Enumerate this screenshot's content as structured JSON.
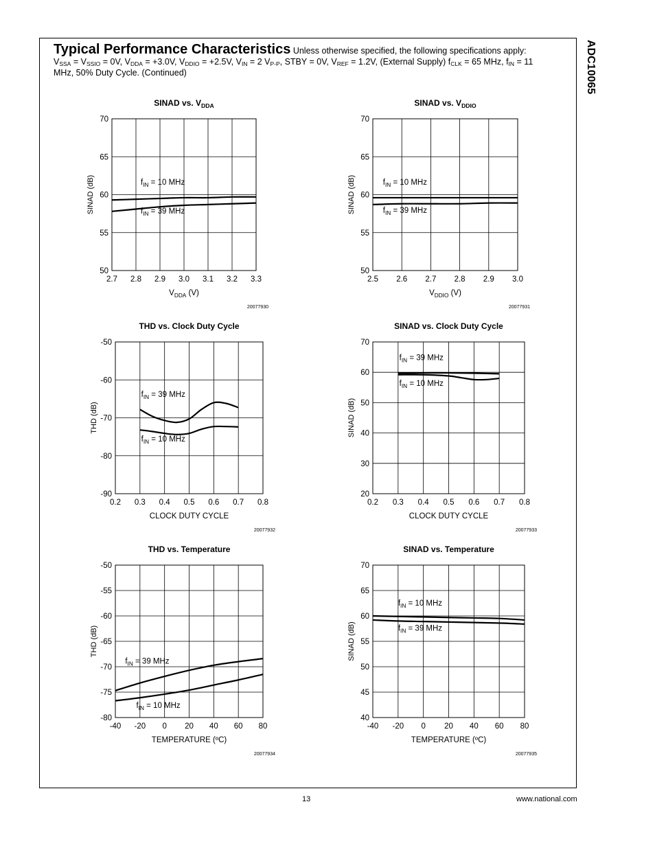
{
  "side_title": "ADC10065",
  "header": {
    "title": "Typical Performance Characteristics",
    "intro": "Unless otherwise specified, the following specifications apply:",
    "conditions": [
      {
        "t": "V"
      },
      {
        "t": "SSA",
        "sub": true
      },
      {
        "t": " = V"
      },
      {
        "t": "SSIO",
        "sub": true
      },
      {
        "t": " = 0V, V"
      },
      {
        "t": "DDA",
        "sub": true
      },
      {
        "t": " = +3.0V, V"
      },
      {
        "t": "DDIO",
        "sub": true
      },
      {
        "t": " = +2.5V, V"
      },
      {
        "t": "IN",
        "sub": true
      },
      {
        "t": " = 2 V"
      },
      {
        "t": "P-P",
        "sub": true
      },
      {
        "t": ", STBY = 0V, V"
      },
      {
        "t": "REF",
        "sub": true
      },
      {
        "t": " = 1.2V, (External Supply) f"
      },
      {
        "t": "CLK",
        "sub": true
      },
      {
        "t": " = 65 MHz, f"
      },
      {
        "t": "IN",
        "sub": true
      },
      {
        "t": " = 11 MHz, 50% Duty Cycle.  (Continued)"
      }
    ]
  },
  "footer": {
    "page_number": "13",
    "website": "www.national.com"
  },
  "chart_data": [
    {
      "type": "line",
      "title": "SINAD vs. V",
      "title_sub": "DDA",
      "xlabel": "V",
      "xlabel_sub": "DDA",
      "xlabel_suffix": " (V)",
      "ylabel": "SINAD (dB)",
      "xlim": [
        2.7,
        3.3
      ],
      "ylim": [
        50,
        70
      ],
      "xticks": [
        2.7,
        2.8,
        2.9,
        3.0,
        3.1,
        3.2,
        3.3
      ],
      "xtick_labels": [
        "2.7",
        "2.8",
        "2.9",
        "3.0",
        "3.1",
        "3.2",
        "3.3"
      ],
      "yticks": [
        50,
        55,
        60,
        65,
        70
      ],
      "ytick_labels": [
        "50",
        "55",
        "60",
        "65",
        "70"
      ],
      "grid": true,
      "figure_id": "20077930",
      "series": [
        {
          "name": "fIN = 10 MHz",
          "x": [
            2.7,
            2.8,
            2.9,
            3.0,
            3.1,
            3.2,
            3.3
          ],
          "y": [
            59.3,
            59.4,
            59.5,
            59.6,
            59.6,
            59.7,
            59.7
          ]
        },
        {
          "name": "fIN = 39 MHz",
          "x": [
            2.7,
            2.8,
            2.9,
            3.0,
            3.1,
            3.2,
            3.3
          ],
          "y": [
            57.8,
            58.1,
            58.4,
            58.6,
            58.7,
            58.8,
            58.9
          ]
        }
      ],
      "annotations": [
        {
          "pre": "f",
          "sub": "IN",
          "post": " = 10 MHz",
          "x": 2.82,
          "y": 61.3
        },
        {
          "pre": "f",
          "sub": "IN",
          "post": " = 39 MHz",
          "x": 2.82,
          "y": 57.5
        }
      ]
    },
    {
      "type": "line",
      "title": "SINAD vs. V",
      "title_sub": "DDIO",
      "xlabel": "V",
      "xlabel_sub": "DDIO",
      "xlabel_suffix": " (V)",
      "ylabel": "SINAD (dB)",
      "xlim": [
        2.5,
        3.0
      ],
      "ylim": [
        50,
        70
      ],
      "xticks": [
        2.5,
        2.6,
        2.7,
        2.8,
        2.9,
        3.0
      ],
      "xtick_labels": [
        "2.5",
        "2.6",
        "2.7",
        "2.8",
        "2.9",
        "3.0"
      ],
      "yticks": [
        50,
        55,
        60,
        65,
        70
      ],
      "ytick_labels": [
        "50",
        "55",
        "60",
        "65",
        "70"
      ],
      "grid": true,
      "figure_id": "20077931",
      "series": [
        {
          "name": "fIN = 10 MHz",
          "x": [
            2.5,
            2.6,
            2.7,
            2.8,
            2.9,
            3.0
          ],
          "y": [
            59.6,
            59.6,
            59.6,
            59.6,
            59.6,
            59.6
          ]
        },
        {
          "name": "fIN = 39 MHz",
          "x": [
            2.5,
            2.6,
            2.7,
            2.8,
            2.9,
            3.0
          ],
          "y": [
            58.7,
            58.8,
            58.8,
            58.8,
            58.9,
            58.9
          ]
        }
      ],
      "annotations": [
        {
          "pre": "f",
          "sub": "IN",
          "post": " = 10 MHz",
          "x": 2.535,
          "y": 61.3
        },
        {
          "pre": "f",
          "sub": "IN",
          "post": " = 39 MHz",
          "x": 2.535,
          "y": 57.6
        }
      ]
    },
    {
      "type": "line",
      "title": "THD vs. Clock Duty Cycle",
      "xlabel": "CLOCK DUTY CYCLE",
      "ylabel": "THD (dB)",
      "xlim": [
        0.2,
        0.8
      ],
      "ylim": [
        -90,
        -50
      ],
      "xticks": [
        0.2,
        0.3,
        0.4,
        0.5,
        0.6,
        0.7,
        0.8
      ],
      "xtick_labels": [
        "0.2",
        "0.3",
        "0.4",
        "0.5",
        "0.6",
        "0.7",
        "0.8"
      ],
      "yticks": [
        -90,
        -80,
        -70,
        -60,
        -50
      ],
      "ytick_labels": [
        "-90",
        "-80",
        "-70",
        "-60",
        "-50"
      ],
      "grid": true,
      "figure_id": "20077932",
      "series": [
        {
          "name": "fIN = 39 MHz",
          "x": [
            0.3,
            0.35,
            0.4,
            0.45,
            0.5,
            0.55,
            0.6,
            0.65,
            0.7
          ],
          "y": [
            -67.8,
            -69.6,
            -70.7,
            -71.2,
            -70.3,
            -67.8,
            -66.0,
            -66.2,
            -67.3
          ]
        },
        {
          "name": "fIN = 10 MHz",
          "x": [
            0.3,
            0.35,
            0.4,
            0.45,
            0.5,
            0.55,
            0.6,
            0.65,
            0.7
          ],
          "y": [
            -73.2,
            -73.6,
            -74.1,
            -74.4,
            -74.1,
            -73.0,
            -72.3,
            -72.3,
            -72.4
          ]
        }
      ],
      "annotations": [
        {
          "pre": "f",
          "sub": "IN",
          "post": " = 39 MHz",
          "x": 0.305,
          "y": -64.5
        },
        {
          "pre": "f",
          "sub": "IN",
          "post": " = 10 MHz",
          "x": 0.305,
          "y": -76.2
        }
      ]
    },
    {
      "type": "line",
      "title": "SINAD vs. Clock Duty Cycle",
      "xlabel": "CLOCK DUTY CYCLE",
      "ylabel": "SINAD (dB)",
      "xlim": [
        0.2,
        0.8
      ],
      "ylim": [
        20,
        70
      ],
      "xticks": [
        0.2,
        0.3,
        0.4,
        0.5,
        0.6,
        0.7,
        0.8
      ],
      "xtick_labels": [
        "0.2",
        "0.3",
        "0.4",
        "0.5",
        "0.6",
        "0.7",
        "0.8"
      ],
      "yticks": [
        20,
        30,
        40,
        50,
        60,
        70
      ],
      "ytick_labels": [
        "20",
        "30",
        "40",
        "50",
        "60",
        "70"
      ],
      "grid": true,
      "figure_id": "20077933",
      "series": [
        {
          "name": "fIN = 39 MHz",
          "x": [
            0.3,
            0.4,
            0.5,
            0.55,
            0.6,
            0.65,
            0.7
          ],
          "y": [
            59.2,
            59.2,
            58.8,
            58.2,
            57.6,
            57.6,
            58.0
          ]
        },
        {
          "name": "fIN = 10 MHz",
          "x": [
            0.3,
            0.4,
            0.5,
            0.6,
            0.7
          ],
          "y": [
            59.7,
            59.8,
            59.8,
            59.7,
            59.5
          ]
        }
      ],
      "annotations": [
        {
          "pre": "f",
          "sub": "IN",
          "post": " = 39 MHz",
          "x": 0.305,
          "y": 64.0
        },
        {
          "pre": "f",
          "sub": "IN",
          "post": " = 10 MHz",
          "x": 0.305,
          "y": 55.5
        }
      ]
    },
    {
      "type": "line",
      "title": "THD vs. Temperature",
      "xlabel": "TEMPERATURE (ºC)",
      "ylabel": "THD (dB)",
      "xlim": [
        -40,
        80
      ],
      "ylim": [
        -80,
        -50
      ],
      "xticks": [
        -40,
        -20,
        0,
        20,
        40,
        60,
        80
      ],
      "xtick_labels": [
        "-40",
        "-20",
        "0",
        "20",
        "40",
        "60",
        "80"
      ],
      "yticks": [
        -80,
        -75,
        -70,
        -65,
        -60,
        -55,
        -50
      ],
      "ytick_labels": [
        "-80",
        "-75",
        "-70",
        "-65",
        "-60",
        "-55",
        "-50"
      ],
      "grid": true,
      "figure_id": "20077934",
      "series": [
        {
          "name": "fIN = 39 MHz",
          "x": [
            -40,
            -20,
            0,
            20,
            40,
            60,
            80
          ],
          "y": [
            -74.7,
            -73.2,
            -71.9,
            -70.7,
            -69.7,
            -69.0,
            -68.4
          ]
        },
        {
          "name": "fIN = 10 MHz",
          "x": [
            -40,
            -20,
            0,
            20,
            40,
            60,
            80
          ],
          "y": [
            -76.7,
            -76.1,
            -75.4,
            -74.6,
            -73.6,
            -72.6,
            -71.5
          ]
        }
      ],
      "annotations": [
        {
          "pre": "f",
          "sub": "IN",
          "post": " = 39 MHz",
          "x": -32,
          "y": -69.4
        },
        {
          "pre": "f",
          "sub": "IN",
          "post": " = 10 MHz",
          "x": -23,
          "y": -78.1
        }
      ]
    },
    {
      "type": "line",
      "title": "SINAD vs. Temperature",
      "xlabel": "TEMPERATURE (ºC)",
      "ylabel": "SINAD (dB)",
      "xlim": [
        -40,
        80
      ],
      "ylim": [
        40,
        70
      ],
      "xticks": [
        -40,
        -20,
        0,
        20,
        40,
        60,
        80
      ],
      "xtick_labels": [
        "-40",
        "-20",
        "0",
        "20",
        "40",
        "60",
        "80"
      ],
      "yticks": [
        40,
        45,
        50,
        55,
        60,
        65,
        70
      ],
      "ytick_labels": [
        "40",
        "45",
        "50",
        "55",
        "60",
        "65",
        "70"
      ],
      "grid": true,
      "figure_id": "20077935",
      "series": [
        {
          "name": "fIN = 10 MHz",
          "x": [
            -40,
            -20,
            0,
            20,
            40,
            60,
            80
          ],
          "y": [
            60.0,
            59.9,
            59.8,
            59.7,
            59.6,
            59.5,
            59.2
          ]
        },
        {
          "name": "fIN = 39 MHz",
          "x": [
            -40,
            -20,
            0,
            20,
            40,
            60,
            80
          ],
          "y": [
            59.2,
            59.0,
            58.9,
            58.8,
            58.7,
            58.6,
            58.4
          ]
        }
      ],
      "annotations": [
        {
          "pre": "f",
          "sub": "IN",
          "post": " = 10 MHz",
          "x": -20,
          "y": 62.0
        },
        {
          "pre": "f",
          "sub": "IN",
          "post": " = 39 MHz",
          "x": -20,
          "y": 57.1
        }
      ]
    }
  ]
}
